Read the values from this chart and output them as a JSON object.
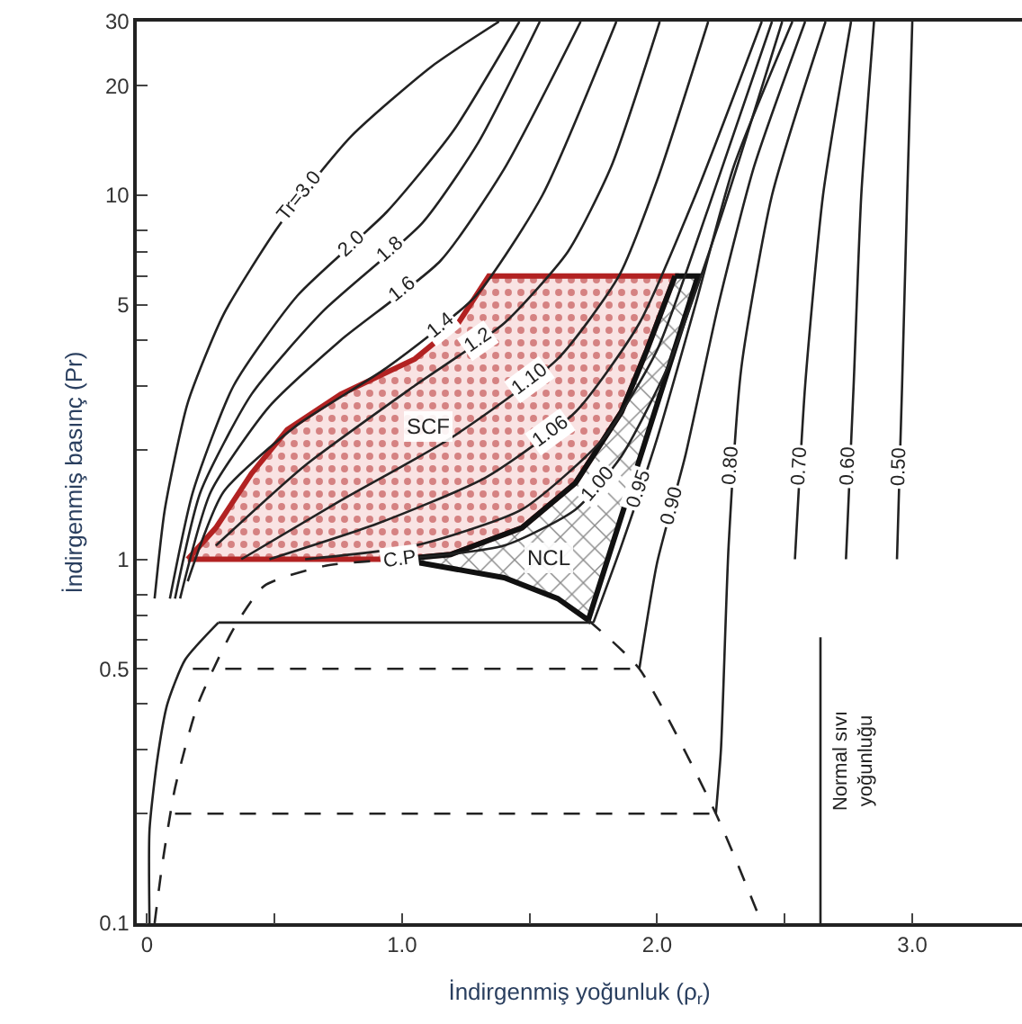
{
  "chart_data": {
    "type": "line",
    "log": "y",
    "xlabel": "İndirgenmiş yoğunluk (ρ$_{r}$)",
    "ylabel": "İndirgenmiş basınç (Pr)",
    "xlim": [
      -0.04,
      3.43
    ],
    "ylim": [
      0.1,
      30
    ],
    "xticks": [
      {
        "value": 0,
        "label": "0"
      },
      {
        "value": 0.5,
        "label": null
      },
      {
        "value": 1,
        "label": "1.0"
      },
      {
        "value": 1.5,
        "label": null
      },
      {
        "value": 2,
        "label": "2.0"
      },
      {
        "value": 2.5,
        "label": null
      },
      {
        "value": 3,
        "label": "3.0"
      }
    ],
    "yticks": [
      0.1,
      {
        "value": 0.2,
        "label": null
      },
      {
        "value": 0.3,
        "label": null
      },
      {
        "value": 0.4,
        "label": null
      },
      0.5,
      {
        "value": 0.6,
        "label": null
      },
      {
        "value": 0.7,
        "label": null
      },
      {
        "value": 0.8,
        "label": null
      },
      1,
      {
        "value": 2,
        "label": null
      },
      {
        "value": 3,
        "label": null
      },
      {
        "value": 4,
        "label": null
      },
      5,
      {
        "value": 6,
        "label": null
      },
      {
        "value": 7,
        "label": null
      },
      {
        "value": 8,
        "label": null
      },
      10,
      20,
      30
    ],
    "series": [
      {
        "type": "area",
        "color": "#b22222",
        "x": [
          0.16,
          0.27,
          0.41,
          0.55,
          0.76,
          1.05,
          1.22,
          1.34,
          2.07,
          1.96,
          1.86,
          1.68,
          1.47,
          1.19,
          0.99,
          0.16
        ],
        "values": [
          1.0,
          1.22,
          1.72,
          2.27,
          2.84,
          3.55,
          4.45,
          6.0,
          6.0,
          3.76,
          2.54,
          1.62,
          1.22,
          1.03,
          1.0,
          1.0
        ]
      },
      {
        "type": "area",
        "color": "#111111",
        "x": [
          2.07,
          2.16,
          1.73,
          1.61,
          1.4,
          0.99,
          1.19,
          1.47,
          1.68,
          1.86,
          1.96,
          2.07
        ],
        "values": [
          6.0,
          6.0,
          0.68,
          0.78,
          0.89,
          1.0,
          1.03,
          1.22,
          1.62,
          2.54,
          3.76,
          6.0
        ]
      },
      {
        "color": "#222222",
        "x": [
          0.03,
          0.07,
          0.16,
          0.3,
          0.52,
          0.8,
          1.12,
          1.38
        ],
        "values": [
          0.78,
          1.37,
          2.69,
          4.7,
          8.3,
          14.5,
          22.7,
          30
        ]
      },
      {
        "color": "#222222",
        "x": [
          0.09,
          0.18,
          0.34,
          0.59,
          0.94,
          1.2,
          1.46
        ],
        "values": [
          0.78,
          1.53,
          3.0,
          5.3,
          9.0,
          15,
          30
        ]
      },
      {
        "color": "#222222",
        "x": [
          0.11,
          0.21,
          0.41,
          0.69,
          1.08,
          1.3,
          1.54
        ],
        "values": [
          0.78,
          1.53,
          2.84,
          4.8,
          8.4,
          14,
          30
        ]
      },
      {
        "color": "#222222",
        "x": [
          0.13,
          0.25,
          0.48,
          0.76,
          1.15,
          1.4,
          1.7
        ],
        "values": [
          0.78,
          1.53,
          2.63,
          4.0,
          6.6,
          11.8,
          30
        ]
      },
      {
        "color": "#222222",
        "x": [
          0.16,
          0.3,
          0.59,
          0.94,
          1.29,
          1.55,
          1.84
        ],
        "values": [
          0.87,
          1.53,
          2.34,
          3.36,
          5.3,
          10,
          30
        ]
      },
      {
        "color": "#222222",
        "x": [
          0.27,
          0.62,
          1.05,
          1.4,
          1.65,
          1.82,
          2.01
        ],
        "values": [
          1.09,
          1.81,
          3.0,
          4.45,
          7.0,
          12,
          30
        ]
      },
      {
        "color": "#222222",
        "x": [
          0.37,
          0.76,
          1.19,
          1.61,
          1.85,
          2.0,
          2.2
        ],
        "values": [
          1.0,
          1.45,
          2.15,
          3.55,
          6.0,
          11,
          30
        ]
      },
      {
        "color": "#222222",
        "x": [
          0.48,
          0.9,
          1.33,
          1.68,
          1.93,
          2.15,
          2.41
        ],
        "values": [
          1.0,
          1.25,
          1.68,
          2.54,
          4.45,
          10,
          30
        ]
      },
      {
        "color": "#222222",
        "x": [
          0.62,
          1.05,
          1.47,
          1.79,
          2.0,
          2.2,
          2.45
        ],
        "values": [
          1.0,
          1.09,
          1.37,
          2.15,
          3.76,
          9.2,
          30
        ]
      },
      {
        "color": "#222222",
        "x": [
          0.99,
          1.4,
          1.68,
          1.86,
          2.04,
          2.24,
          2.49
        ],
        "values": [
          1.0,
          1.09,
          1.37,
          1.92,
          3.36,
          8.3,
          30
        ]
      },
      {
        "color": "#222222",
        "x": [
          0.01,
          0.01,
          0.04,
          0.08,
          0.15,
          0.28
        ],
        "values": [
          0.1,
          0.18,
          0.28,
          0.4,
          0.53,
          0.67
        ]
      },
      {
        "color": "#222222",
        "x": [
          0.28,
          1.75
        ],
        "values": [
          0.67,
          0.67
        ]
      },
      {
        "color": "#222222",
        "x": [
          1.75,
          1.86,
          2.0,
          2.15,
          2.3,
          2.53
        ],
        "values": [
          0.67,
          1.09,
          2.15,
          5.0,
          12,
          30
        ]
      },
      {
        "color": "#222222",
        "x": [
          1.93,
          2.0,
          2.11,
          2.24,
          2.38,
          2.58
        ],
        "values": [
          0.5,
          0.98,
          1.92,
          5.0,
          12,
          30
        ]
      },
      {
        "color": "#222222",
        "x": [
          2.23,
          2.25,
          2.28,
          2.33,
          2.45,
          2.66
        ],
        "values": [
          0.2,
          0.3,
          1.09,
          3.36,
          10,
          30
        ]
      },
      {
        "color": "#222222",
        "x": [
          2.54,
          2.58,
          2.65,
          2.76
        ],
        "values": [
          1.0,
          3,
          10,
          30
        ]
      },
      {
        "color": "#222222",
        "x": [
          2.74,
          2.77,
          2.8,
          2.85
        ],
        "values": [
          1.0,
          3,
          10,
          30
        ]
      },
      {
        "color": "#222222",
        "x": [
          2.94,
          2.96,
          2.98,
          3.0
        ],
        "values": [
          1.0,
          3,
          10,
          30
        ]
      },
      {
        "color": "#222222",
        "line_style": "dashed",
        "x": [
          0.03,
          0.06,
          0.11,
          0.2,
          0.34,
          0.46,
          0.7,
          0.99
        ],
        "values": [
          0.1,
          0.145,
          0.235,
          0.4,
          0.645,
          0.845,
          0.96,
          1.0
        ]
      },
      {
        "color": "#222222",
        "line_style": "dashed",
        "x": [
          1.73,
          1.93,
          2.23,
          2.41
        ],
        "values": [
          0.68,
          0.5,
          0.2,
          0.1
        ]
      },
      {
        "color": "#222222",
        "line_style": "dashed",
        "x": [
          0.18,
          1.93
        ],
        "values": [
          0.5,
          0.5
        ]
      },
      {
        "color": "#222222",
        "line_style": "dashed",
        "x": [
          0.11,
          2.23
        ],
        "values": [
          0.2,
          0.2
        ]
      },
      {
        "color": "#222222",
        "x": [
          2.64,
          2.64
        ],
        "values": [
          0.1,
          0.61
        ]
      }
    ],
    "annotations": [
      {
        "text": "Tr=3.0",
        "x": 0.6,
        "y": 9.9
      },
      {
        "text": "2.0",
        "x": 0.8,
        "y": 7.3
      },
      {
        "text": "1.8",
        "x": 0.95,
        "y": 7.1
      },
      {
        "text": "1.6",
        "x": 1.0,
        "y": 5.5
      },
      {
        "text": "1.4",
        "x": 1.15,
        "y": 4.4
      },
      {
        "text": "1.2",
        "x": 1.3,
        "y": 4.0
      },
      {
        "text": "1.10",
        "x": 1.5,
        "y": 3.1
      },
      {
        "text": "1.06",
        "x": 1.58,
        "y": 2.25
      },
      {
        "text": "1.00",
        "x": 1.77,
        "y": 1.6
      },
      {
        "text": "0.95",
        "x": 1.93,
        "y": 1.55
      },
      {
        "text": "0.90",
        "x": 2.06,
        "y": 1.4
      },
      {
        "text": "0.80",
        "x": 2.29,
        "y": 1.8
      },
      {
        "text": "0.70",
        "x": 2.56,
        "y": 1.8
      },
      {
        "text": "0.60",
        "x": 2.75,
        "y": 1.8
      },
      {
        "text": "0.50",
        "x": 2.95,
        "y": 1.8
      },
      "SCF",
      "NCL",
      {
        "text": "C.P",
        "x": 0.99,
        "y": 1.0
      },
      {
        "text": "Normal sıvı\nyoğunluğu",
        "x": 2.64,
        "y": 0.28
      }
    ]
  }
}
